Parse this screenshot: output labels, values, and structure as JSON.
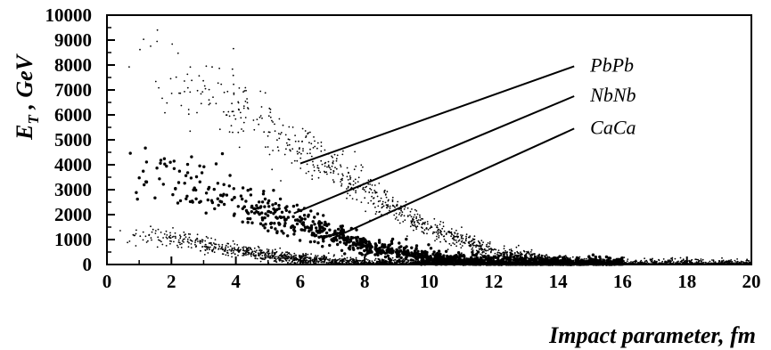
{
  "chart_data": {
    "type": "scatter",
    "xlabel": "Impact parameter, fm",
    "ylabel": "E_T , GeV",
    "ylabel_main": "E",
    "ylabel_sub": "T",
    "ylabel_rest": " , GeV",
    "xlim": [
      0,
      20
    ],
    "ylim": [
      0,
      10000
    ],
    "x_ticks": [
      0,
      2,
      4,
      6,
      8,
      10,
      12,
      14,
      16,
      18,
      20
    ],
    "y_ticks": [
      0,
      1000,
      2000,
      3000,
      4000,
      5000,
      6000,
      7000,
      8000,
      9000,
      10000
    ],
    "grid": false,
    "series": [
      {
        "name": "PbPb",
        "marker": "small dot",
        "trend": {
          "x": [
            0.3,
            2,
            4,
            6,
            8,
            10,
            12,
            14,
            16,
            18,
            20
          ],
          "y": [
            8150,
            7550,
            6350,
            4700,
            3000,
            1450,
            520,
            130,
            25,
            5,
            0
          ]
        }
      },
      {
        "name": "NbNb",
        "marker": "large dot",
        "trend": {
          "x": [
            0.2,
            2,
            4,
            6,
            8,
            10,
            12,
            14,
            16
          ],
          "y": [
            3700,
            3350,
            2600,
            1650,
            750,
            260,
            70,
            10,
            0
          ]
        }
      },
      {
        "name": "CaCa",
        "marker": "small dot",
        "trend": {
          "x": [
            0.2,
            2,
            4,
            6,
            8,
            10,
            12
          ],
          "y": [
            1300,
            1050,
            570,
            200,
            45,
            5,
            0
          ]
        }
      }
    ],
    "annotations": [
      {
        "text": "PbPb",
        "points_to": "PbPb",
        "arrow_from": [
          14.5,
          7950
        ],
        "arrow_to": [
          6.0,
          4050
        ]
      },
      {
        "text": "NbNb",
        "points_to": "NbNb",
        "arrow_from": [
          14.5,
          6750
        ],
        "arrow_to": [
          5.8,
          2050
        ]
      },
      {
        "text": "CaCa",
        "points_to": "CaCa",
        "arrow_from": [
          14.5,
          5450
        ],
        "arrow_to": [
          7.0,
          1050
        ]
      }
    ]
  }
}
